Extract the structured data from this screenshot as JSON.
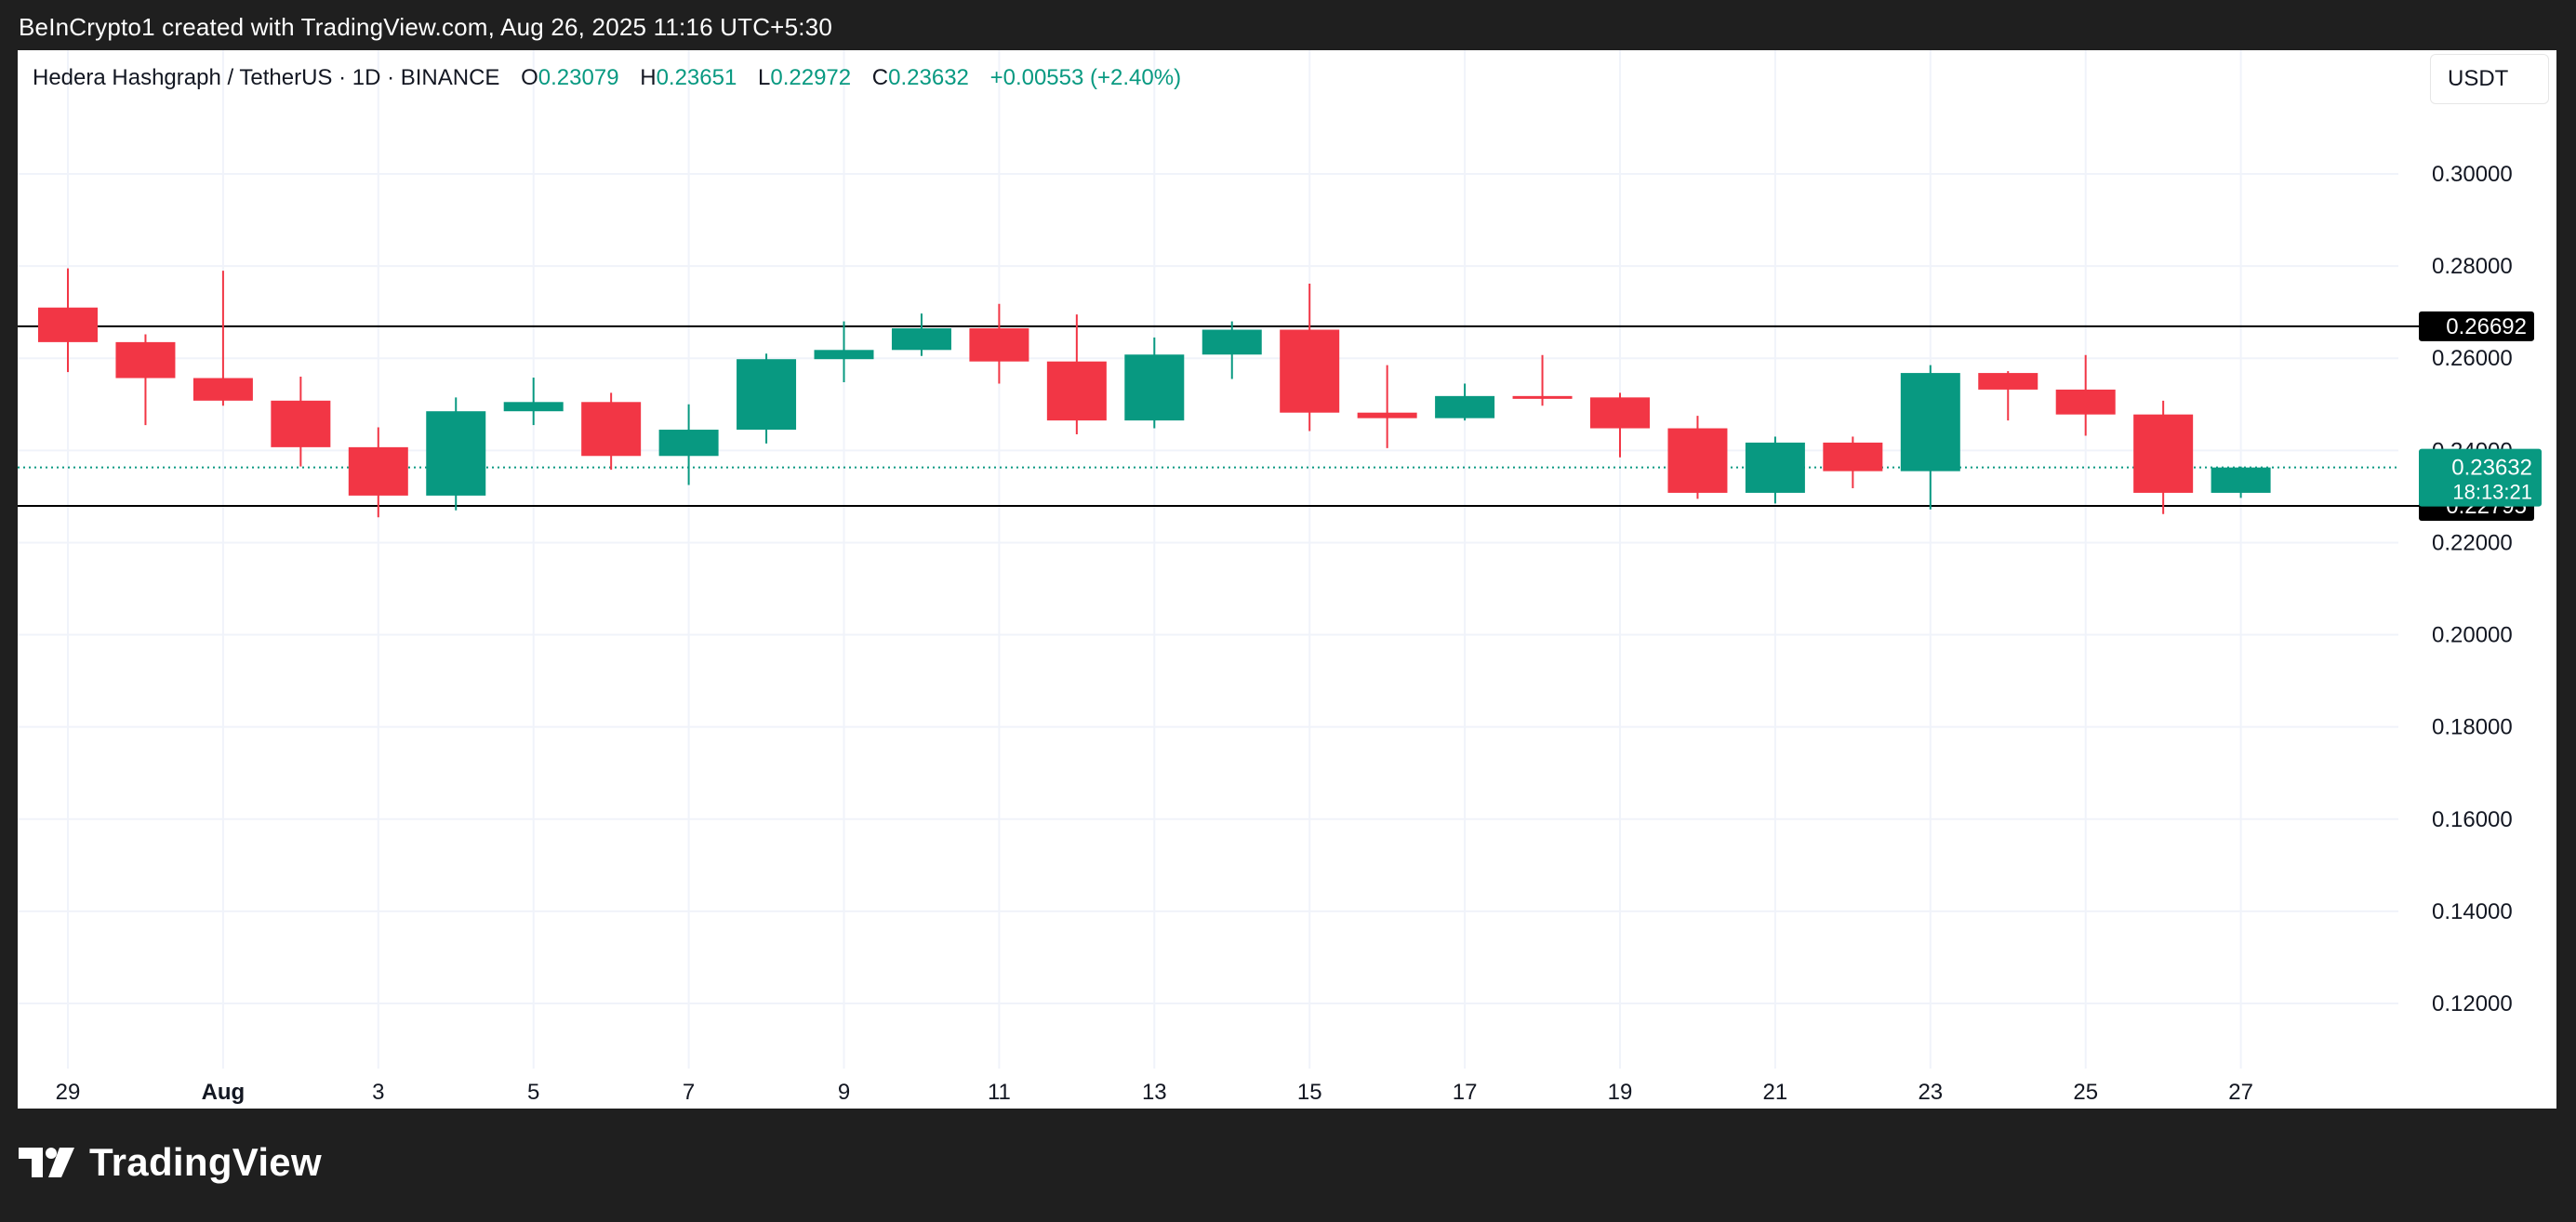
{
  "caption": "BeInCrypto1 created with TradingView.com, Aug 26, 2025 11:16 UTC+5:30",
  "legend": {
    "symbol": "Hedera Hashgraph / TetherUS · 1D · BINANCE",
    "open_label": "O",
    "open": "0.23079",
    "high_label": "H",
    "high": "0.23651",
    "low_label": "L",
    "low": "0.22972",
    "close_label": "C",
    "close": "0.23632",
    "change": "+0.00553 (+2.40%)"
  },
  "currency": "USDT",
  "brand": "TradingView",
  "colors": {
    "up": "#089981",
    "down": "#f23645",
    "level_line": "#000000",
    "grid": "#f0f3fa"
  },
  "chart_data": {
    "type": "candlestick",
    "x_tick_labels": [
      "29",
      "Aug",
      "3",
      "5",
      "7",
      "9",
      "11",
      "13",
      "15",
      "17",
      "19",
      "21",
      "23",
      "25",
      "27"
    ],
    "y_ticks": [
      "0.30000",
      "0.28000",
      "0.26000",
      "0.24000",
      "0.22000",
      "0.20000",
      "0.18000",
      "0.16000",
      "0.14000",
      "0.12000"
    ],
    "ylim": [
      0.108,
      0.32
    ],
    "grid": true,
    "dates": [
      "Jul 29",
      "Jul 30",
      "Jul 31",
      "Aug 1",
      "Aug 2",
      "Aug 3",
      "Aug 4",
      "Aug 5",
      "Aug 6",
      "Aug 7",
      "Aug 8",
      "Aug 9",
      "Aug 10",
      "Aug 11",
      "Aug 12",
      "Aug 13",
      "Aug 14",
      "Aug 15",
      "Aug 16",
      "Aug 17",
      "Aug 18",
      "Aug 19",
      "Aug 20",
      "Aug 21",
      "Aug 22",
      "Aug 23",
      "Aug 24",
      "Aug 25",
      "Aug 26"
    ],
    "ohlc": [
      [
        0.271,
        0.2795,
        0.257,
        0.2635
      ],
      [
        0.2635,
        0.2652,
        0.2455,
        0.2557
      ],
      [
        0.2557,
        0.279,
        0.2497,
        0.2508
      ],
      [
        0.2508,
        0.256,
        0.2365,
        0.2407
      ],
      [
        0.2407,
        0.245,
        0.2255,
        0.2302
      ],
      [
        0.2302,
        0.2515,
        0.227,
        0.2485
      ],
      [
        0.2485,
        0.2558,
        0.2455,
        0.2505
      ],
      [
        0.2505,
        0.2525,
        0.2358,
        0.2388
      ],
      [
        0.2388,
        0.25,
        0.2325,
        0.2445
      ],
      [
        0.2445,
        0.261,
        0.2415,
        0.2598
      ],
      [
        0.2598,
        0.268,
        0.2548,
        0.2618
      ],
      [
        0.2618,
        0.2697,
        0.2605,
        0.2665
      ],
      [
        0.2665,
        0.2718,
        0.2545,
        0.2593
      ],
      [
        0.2593,
        0.2695,
        0.2435,
        0.2465
      ],
      [
        0.2465,
        0.2645,
        0.2448,
        0.2608
      ],
      [
        0.2608,
        0.268,
        0.2555,
        0.2662
      ],
      [
        0.2662,
        0.2762,
        0.2442,
        0.2482
      ],
      [
        0.2482,
        0.2585,
        0.2405,
        0.247
      ],
      [
        0.247,
        0.2545,
        0.2465,
        0.2518
      ],
      [
        0.2518,
        0.2607,
        0.2497,
        0.2515
      ],
      [
        0.2515,
        0.2525,
        0.2385,
        0.2448
      ],
      [
        0.2448,
        0.2475,
        0.2295,
        0.2308
      ],
      [
        0.2308,
        0.243,
        0.2285,
        0.2417
      ],
      [
        0.2417,
        0.243,
        0.2318,
        0.2355
      ],
      [
        0.2355,
        0.2585,
        0.2272,
        0.2568
      ],
      [
        0.2568,
        0.2572,
        0.2465,
        0.2532
      ],
      [
        0.2532,
        0.2607,
        0.2432,
        0.2478
      ],
      [
        0.2478,
        0.2508,
        0.2262,
        0.2308
      ],
      [
        0.2308,
        0.2365,
        0.2297,
        0.2363
      ]
    ],
    "levels": [
      {
        "value": 0.26692,
        "label": "0.26692"
      },
      {
        "value": 0.22795,
        "label": "0.22795"
      }
    ],
    "last_price": {
      "value": 0.23632,
      "label": "0.23632",
      "countdown": "18:13:21"
    }
  }
}
